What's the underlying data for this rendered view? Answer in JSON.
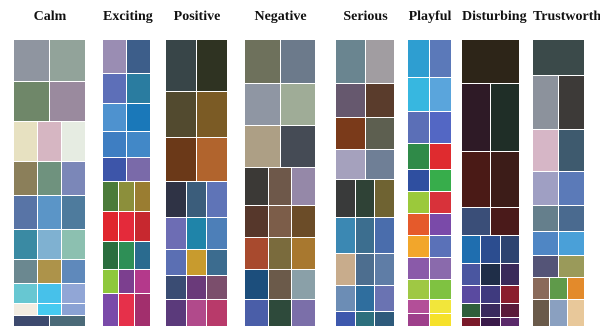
{
  "columns": [
    {
      "title": "Calm",
      "rows": [
        {
          "h": 42,
          "colors": [
            "#8f95a0",
            "#92a39a"
          ]
        },
        {
          "h": 40,
          "colors": [
            "#6f8769",
            "#9a8a9e"
          ]
        },
        {
          "h": 40,
          "colors": [
            "#e7e1c1",
            "#d6b6c2",
            "#e6ece2"
          ]
        },
        {
          "h": 34,
          "colors": [
            "#8b7f5a",
            "#6f927e",
            "#7b87b8"
          ]
        },
        {
          "h": 34,
          "colors": [
            "#5874a6",
            "#5b95c7",
            "#4e7b9d"
          ]
        },
        {
          "h": 30,
          "colors": [
            "#3a8aa3",
            "#7fb1d1",
            "#8cc0b0"
          ]
        },
        {
          "h": 24,
          "colors": [
            "#6b8890",
            "#ad934a",
            "#5f89bb"
          ]
        },
        {
          "h": 20,
          "colors": [
            "#67c7d2",
            "#47c1ea",
            "#91a6d6"
          ]
        },
        {
          "h": 12,
          "colors": [
            "#f2ece1",
            "#46caf0",
            "#8aa2d4"
          ]
        },
        {
          "h": 11,
          "colors": [
            "#3d4a6e",
            "#4b6a78"
          ]
        }
      ]
    },
    {
      "title": "Exciting",
      "rows": [
        {
          "h": 34,
          "colors": [
            "#9a8db3",
            "#3d5e8a"
          ]
        },
        {
          "h": 30,
          "colors": [
            "#5d6fb8",
            "#2a7ca0"
          ]
        },
        {
          "h": 28,
          "colors": [
            "#4e92cf",
            "#1a78b9"
          ]
        },
        {
          "h": 26,
          "colors": [
            "#3e7ec2",
            "#4288c7"
          ]
        },
        {
          "h": 24,
          "colors": [
            "#3d55a9",
            "#7a6aa9"
          ]
        },
        {
          "h": 30,
          "colors": [
            "#4b7b3a",
            "#8c8f3b",
            "#9a7d31"
          ]
        },
        {
          "h": 30,
          "colors": [
            "#e0262d",
            "#e42a3a",
            "#c7282f"
          ]
        },
        {
          "h": 28,
          "colors": [
            "#2a6e3e",
            "#2e8f56",
            "#2a6b8f"
          ]
        },
        {
          "h": 24,
          "colors": [
            "#8ec83c",
            "#7c3f8f",
            "#b4398b"
          ]
        },
        {
          "h": 33,
          "colors": [
            "#7a4aa9",
            "#e6304a",
            "#a22f6d"
          ]
        }
      ]
    },
    {
      "title": "Positive",
      "rows": [
        {
          "h": 52,
          "colors": [
            "#384548",
            "#2f3322"
          ]
        },
        {
          "h": 46,
          "colors": [
            "#524a2f",
            "#7b5b25"
          ]
        },
        {
          "h": 44,
          "colors": [
            "#6b3918",
            "#b1642d"
          ]
        },
        {
          "h": 36,
          "colors": [
            "#2f3345",
            "#3b5d7b",
            "#5f74b7"
          ]
        },
        {
          "h": 32,
          "colors": [
            "#6d6db4",
            "#1f84a9",
            "#4d7fb8"
          ]
        },
        {
          "h": 26,
          "colors": [
            "#5b6fb3",
            "#c89b2e",
            "#3c6c8f"
          ]
        },
        {
          "h": 24,
          "colors": [
            "#3a4c73",
            "#6a3a7a",
            "#7b4e6c"
          ]
        },
        {
          "h": 27,
          "colors": [
            "#5b3a7b",
            "#b14a8b",
            "#b83a6a"
          ]
        }
      ]
    },
    {
      "title": "Negative",
      "rows": [
        {
          "h": 44,
          "colors": [
            "#6e715c",
            "#6c7a8b"
          ]
        },
        {
          "h": 42,
          "colors": [
            "#8f96a3",
            "#9fac97"
          ]
        },
        {
          "h": 42,
          "colors": [
            "#ad9f85",
            "#454b55"
          ]
        },
        {
          "h": 38,
          "colors": [
            "#3b3936",
            "#6e584a",
            "#9588a8"
          ]
        },
        {
          "h": 32,
          "colors": [
            "#56372b",
            "#7c5d49",
            "#6b4c28"
          ]
        },
        {
          "h": 32,
          "colors": [
            "#a84a2e",
            "#7a6b3d",
            "#a8782f"
          ]
        },
        {
          "h": 30,
          "colors": [
            "#1c4e7c",
            "#6b5a4a",
            "#8aa0a8"
          ]
        },
        {
          "h": 27,
          "colors": [
            "#4a5ea8",
            "#2e4a3b",
            "#7b6fa9"
          ]
        }
      ]
    },
    {
      "title": "Serious",
      "rows": [
        {
          "h": 44,
          "colors": [
            "#6a8590",
            "#a19da1"
          ]
        },
        {
          "h": 34,
          "colors": [
            "#66586e",
            "#5a3c2c"
          ]
        },
        {
          "h": 32,
          "colors": [
            "#7a3a1a",
            "#5d5f50"
          ]
        },
        {
          "h": 30,
          "colors": [
            "#a5a1bd",
            "#6f7f96"
          ]
        },
        {
          "h": 38,
          "colors": [
            "#393a3a",
            "#2f4236",
            "#6f6332"
          ]
        },
        {
          "h": 36,
          "colors": [
            "#3b88b3",
            "#3c6e8f",
            "#4a6dac"
          ]
        },
        {
          "h": 32,
          "colors": [
            "#c8ac8c",
            "#4d6e8f",
            "#5f7da6"
          ]
        },
        {
          "h": 26,
          "colors": [
            "#6c8db5",
            "#2f6e9e",
            "#6a73b2"
          ]
        },
        {
          "h": 15,
          "colors": [
            "#3d58ad",
            "#2c6f7d",
            "#2e5a7b"
          ]
        }
      ]
    },
    {
      "title": "Playful",
      "rows": [
        {
          "h": 38,
          "colors": [
            "#2e9ed1",
            "#5b79b9"
          ]
        },
        {
          "h": 34,
          "colors": [
            "#37b7e0",
            "#5aa5dc"
          ]
        },
        {
          "h": 32,
          "colors": [
            "#5b6fb7",
            "#5367c4"
          ]
        },
        {
          "h": 26,
          "colors": [
            "#2f8a48",
            "#df2b2f"
          ]
        },
        {
          "h": 22,
          "colors": [
            "#2f4fa0",
            "#37ad4b"
          ]
        },
        {
          "h": 22,
          "colors": [
            "#9bc93b",
            "#d8323a"
          ]
        },
        {
          "h": 22,
          "colors": [
            "#e55a2b",
            "#7a4aa9"
          ]
        },
        {
          "h": 22,
          "colors": [
            "#f2a62b",
            "#5a71b8"
          ]
        },
        {
          "h": 22,
          "colors": [
            "#8a5aa9",
            "#8a6aac"
          ]
        },
        {
          "h": 20,
          "colors": [
            "#9fc844",
            "#7fc241"
          ]
        },
        {
          "h": 14,
          "colors": [
            "#b34f98",
            "#f2e63a"
          ]
        },
        {
          "h": 13,
          "colors": [
            "#9e3f8b",
            "#f6e12a"
          ]
        }
      ]
    },
    {
      "title": "Disturbing",
      "rows": [
        {
          "h": 44,
          "colors": [
            "#2d2518"
          ]
        },
        {
          "h": 68,
          "colors": [
            "#2e1a26",
            "#1f2e27"
          ]
        },
        {
          "h": 56,
          "colors": [
            "#4a1a16",
            "#3c1c18"
          ]
        },
        {
          "h": 28,
          "colors": [
            "#3a4e78",
            "#4a1a1a"
          ]
        },
        {
          "h": 28,
          "colors": [
            "#1f6eaf",
            "#2c4d8f",
            "#2e4470"
          ]
        },
        {
          "h": 22,
          "colors": [
            "#4a56a0",
            "#1f2e48",
            "#3a2a5a"
          ]
        },
        {
          "h": 18,
          "colors": [
            "#5a4aa0",
            "#3f3a7e",
            "#8a1e2e"
          ]
        },
        {
          "h": 14,
          "colors": [
            "#2f5e3a",
            "#3a2a5e",
            "#5a1a3a"
          ]
        },
        {
          "h": 9,
          "colors": [
            "#7a1a2a",
            "#3a1a4a",
            "#5a2a6a"
          ]
        }
      ]
    },
    {
      "title": "Trustworthy",
      "rows": [
        {
          "h": 36,
          "colors": [
            "#3b4a4a"
          ]
        },
        {
          "h": 54,
          "colors": [
            "#8c929c",
            "#3d3a38"
          ]
        },
        {
          "h": 42,
          "colors": [
            "#d6b6c6",
            "#3e5a6e"
          ]
        },
        {
          "h": 34,
          "colors": [
            "#9f9fc3",
            "#5b7ab8"
          ]
        },
        {
          "h": 26,
          "colors": [
            "#657f8c",
            "#4a6a8f"
          ]
        },
        {
          "h": 24,
          "colors": [
            "#4f86c4",
            "#4aa0d8"
          ]
        },
        {
          "h": 22,
          "colors": [
            "#545477",
            "#9a9a5a"
          ]
        },
        {
          "h": 22,
          "colors": [
            "#8a6a5a",
            "#5f9a4a",
            "#e38a2b"
          ]
        },
        {
          "h": 27,
          "colors": [
            "#6a5a4a",
            "#8aa0c0",
            "#e8c89a"
          ]
        }
      ]
    }
  ]
}
